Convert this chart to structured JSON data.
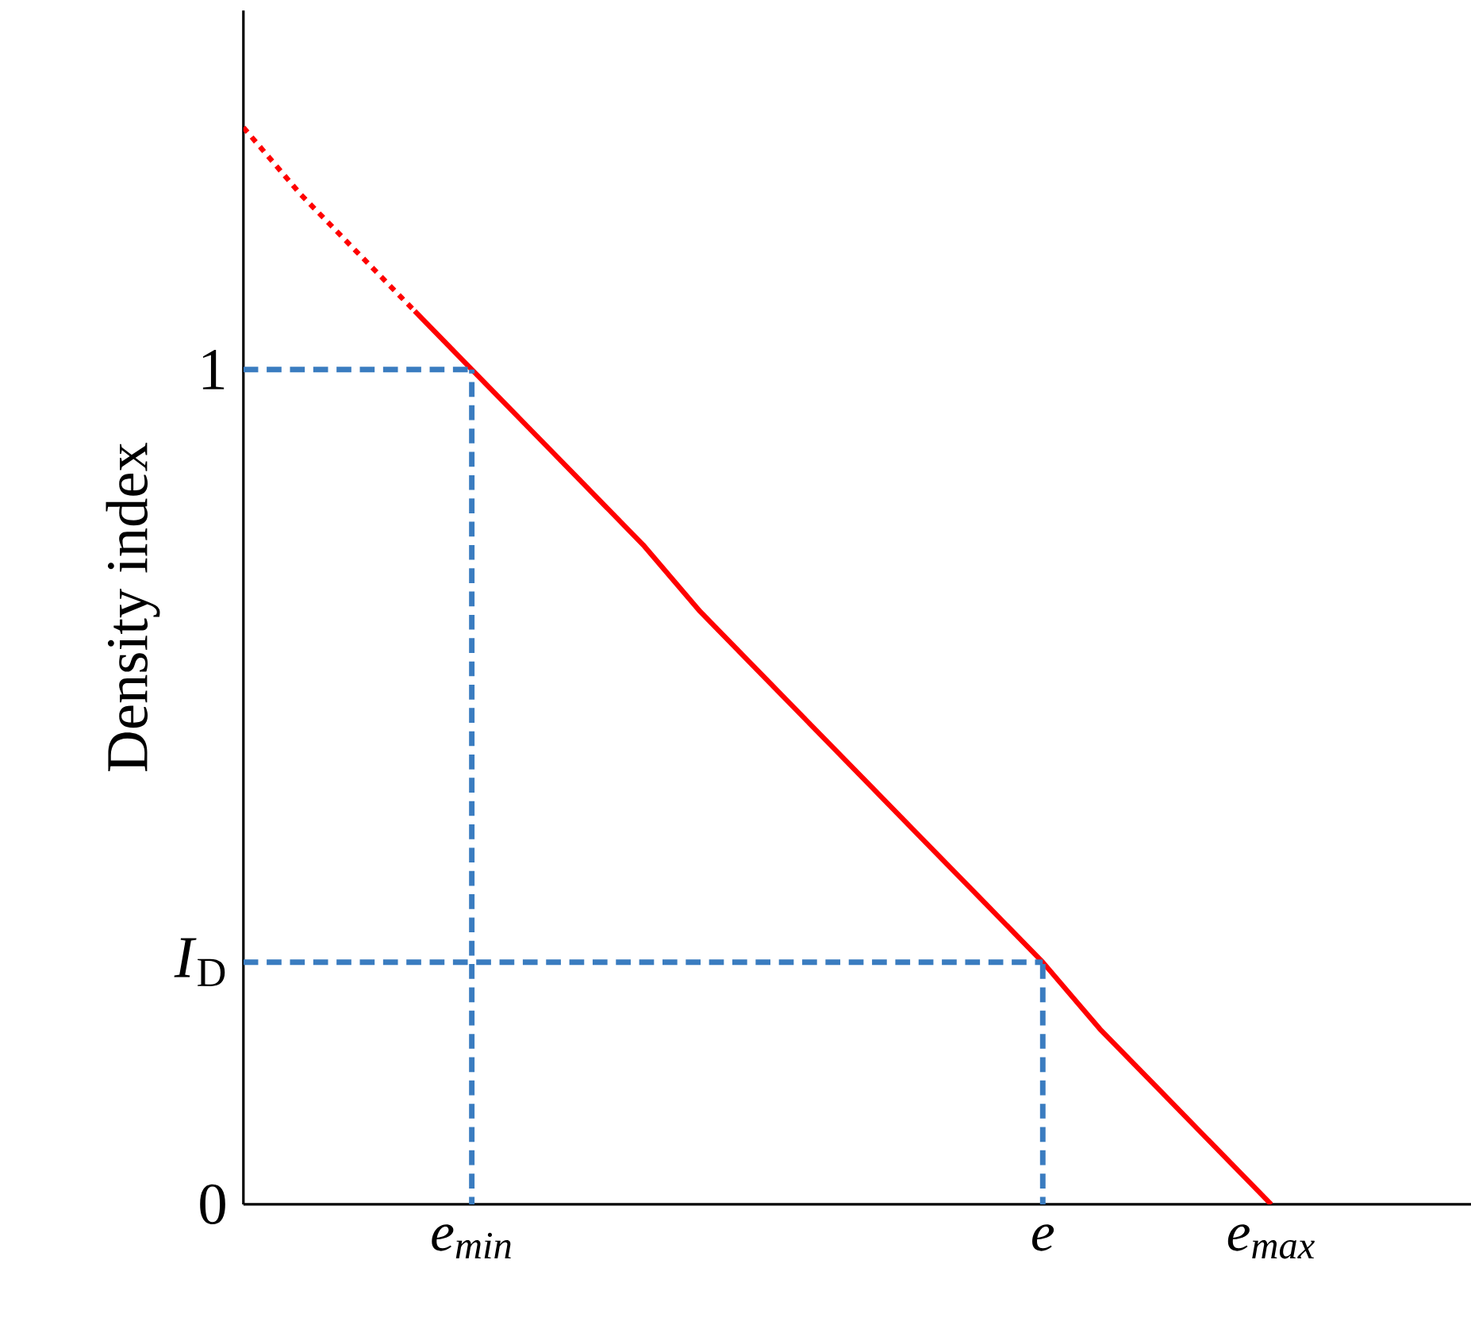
{
  "chart_data": {
    "type": "line",
    "ylabel": "Density index",
    "categories": [
      null,
      null,
      null,
      null,
      "e$_{min}$",
      null,
      null,
      null,
      null,
      null,
      null,
      null,
      null,
      null,
      "e",
      null,
      null,
      null,
      "e$_{max}$",
      null,
      null,
      null
    ],
    "ylim": [
      0,
      1.43
    ],
    "yticks": [
      0,
      {
        "value": 0.29,
        "label": "*I*$_{D}$"
      },
      1
    ],
    "grid": false,
    "marker": "none",
    "series": [
      {
        "color": "#ff0000",
        "line_style": "dotted",
        "values": [
          1.29,
          1.21,
          1.14,
          1.07,
          null,
          null,
          null,
          null,
          null,
          null,
          null,
          null,
          null,
          null,
          null,
          null,
          null,
          null,
          null,
          null,
          null,
          null
        ]
      },
      {
        "color": "#ff0000",
        "line_style": "solid",
        "values": [
          null,
          null,
          null,
          1.07,
          1.0,
          0.93,
          0.86,
          0.79,
          0.71,
          0.64,
          0.57,
          0.5,
          0.43,
          0.36,
          0.29,
          0.21,
          0.14,
          0.07,
          0,
          null,
          null,
          null
        ]
      },
      {
        "color": "#3a7cc0",
        "line_style": "dashed",
        "values": [
          1,
          1,
          1,
          1,
          1,
          null,
          null,
          null,
          null,
          null,
          null,
          null,
          null,
          null,
          null,
          null,
          null,
          null,
          null,
          null,
          null,
          null
        ],
        "errors": [
          null,
          null,
          null,
          null,
          [
            0,
            1
          ],
          null,
          null,
          null,
          null,
          null,
          null,
          null,
          null,
          null,
          null,
          null,
          null,
          null,
          null,
          null,
          null,
          null
        ]
      },
      {
        "color": "#3a7cc0",
        "line_style": "dashed",
        "values": [
          0.29,
          0.29,
          0.29,
          0.29,
          0.29,
          0.29,
          0.29,
          0.29,
          0.29,
          0.29,
          0.29,
          0.29,
          0.29,
          0.29,
          0.29,
          null,
          null,
          null,
          null,
          null,
          null,
          null
        ],
        "errors": [
          null,
          null,
          null,
          null,
          null,
          null,
          null,
          null,
          null,
          null,
          null,
          null,
          null,
          null,
          [
            0,
            0.29
          ],
          null,
          null,
          null,
          null,
          null,
          null,
          null
        ]
      }
    ]
  }
}
